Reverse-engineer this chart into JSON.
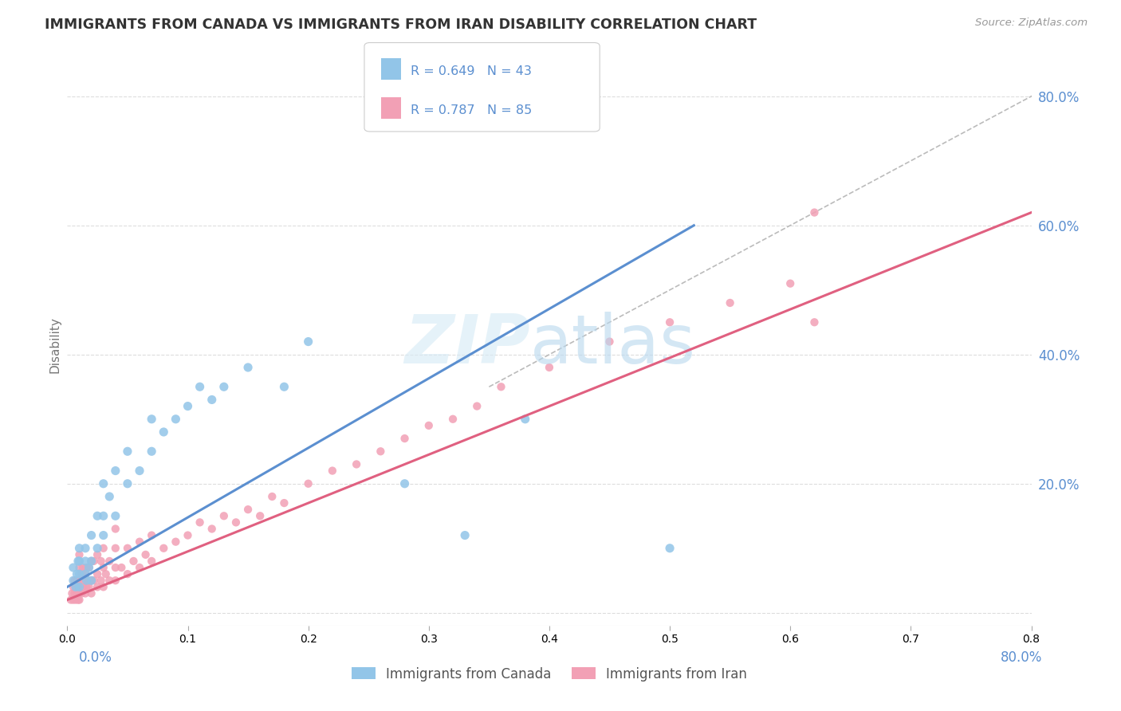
{
  "title": "IMMIGRANTS FROM CANADA VS IMMIGRANTS FROM IRAN DISABILITY CORRELATION CHART",
  "source": "Source: ZipAtlas.com",
  "ylabel": "Disability",
  "xlim": [
    0.0,
    0.8
  ],
  "ylim": [
    -0.02,
    0.85
  ],
  "canada_R": 0.649,
  "canada_N": 43,
  "iran_R": 0.787,
  "iran_N": 85,
  "canada_color": "#92C5E8",
  "iran_color": "#F2A0B5",
  "canada_line_color": "#5B8FD0",
  "iran_line_color": "#E06080",
  "ref_line_color": "#BBBBBB",
  "background_color": "#FFFFFF",
  "legend_border_color": "#CCCCCC",
  "ytick_color": "#5B8FD0",
  "xtick_color": "#5B8FD0",
  "grid_color": "#DDDDDD",
  "title_color": "#333333",
  "source_color": "#999999",
  "watermark_zip_color": "#D5EAF5",
  "watermark_atlas_color": "#B8D8EE",
  "canada_x": [
    0.005,
    0.005,
    0.007,
    0.008,
    0.009,
    0.01,
    0.01,
    0.01,
    0.01,
    0.015,
    0.015,
    0.015,
    0.016,
    0.018,
    0.02,
    0.02,
    0.02,
    0.025,
    0.025,
    0.03,
    0.03,
    0.03,
    0.035,
    0.04,
    0.04,
    0.05,
    0.05,
    0.06,
    0.07,
    0.07,
    0.08,
    0.09,
    0.1,
    0.11,
    0.12,
    0.13,
    0.15,
    0.18,
    0.2,
    0.28,
    0.33,
    0.38,
    0.5
  ],
  "canada_y": [
    0.05,
    0.07,
    0.04,
    0.06,
    0.08,
    0.04,
    0.06,
    0.08,
    0.1,
    0.06,
    0.08,
    0.1,
    0.05,
    0.07,
    0.05,
    0.08,
    0.12,
    0.1,
    0.15,
    0.12,
    0.15,
    0.2,
    0.18,
    0.15,
    0.22,
    0.2,
    0.25,
    0.22,
    0.25,
    0.3,
    0.28,
    0.3,
    0.32,
    0.35,
    0.33,
    0.35,
    0.38,
    0.35,
    0.42,
    0.2,
    0.12,
    0.3,
    0.1
  ],
  "iran_x": [
    0.003,
    0.004,
    0.005,
    0.005,
    0.006,
    0.006,
    0.007,
    0.007,
    0.008,
    0.008,
    0.009,
    0.009,
    0.01,
    0.01,
    0.01,
    0.01,
    0.01,
    0.012,
    0.012,
    0.013,
    0.013,
    0.014,
    0.015,
    0.015,
    0.016,
    0.016,
    0.017,
    0.018,
    0.018,
    0.02,
    0.02,
    0.02,
    0.022,
    0.022,
    0.025,
    0.025,
    0.025,
    0.028,
    0.028,
    0.03,
    0.03,
    0.03,
    0.032,
    0.035,
    0.035,
    0.04,
    0.04,
    0.04,
    0.04,
    0.045,
    0.05,
    0.05,
    0.055,
    0.06,
    0.06,
    0.065,
    0.07,
    0.07,
    0.08,
    0.09,
    0.1,
    0.11,
    0.12,
    0.13,
    0.14,
    0.15,
    0.16,
    0.17,
    0.18,
    0.2,
    0.22,
    0.24,
    0.26,
    0.28,
    0.3,
    0.32,
    0.34,
    0.36,
    0.4,
    0.45,
    0.5,
    0.55,
    0.6,
    0.62,
    0.62
  ],
  "iran_y": [
    0.02,
    0.03,
    0.02,
    0.04,
    0.03,
    0.05,
    0.02,
    0.04,
    0.03,
    0.05,
    0.02,
    0.04,
    0.02,
    0.03,
    0.05,
    0.07,
    0.09,
    0.03,
    0.06,
    0.04,
    0.07,
    0.05,
    0.03,
    0.06,
    0.04,
    0.07,
    0.05,
    0.04,
    0.07,
    0.03,
    0.05,
    0.08,
    0.05,
    0.08,
    0.04,
    0.06,
    0.09,
    0.05,
    0.08,
    0.04,
    0.07,
    0.1,
    0.06,
    0.05,
    0.08,
    0.05,
    0.07,
    0.1,
    0.13,
    0.07,
    0.06,
    0.1,
    0.08,
    0.07,
    0.11,
    0.09,
    0.08,
    0.12,
    0.1,
    0.11,
    0.12,
    0.14,
    0.13,
    0.15,
    0.14,
    0.16,
    0.15,
    0.18,
    0.17,
    0.2,
    0.22,
    0.23,
    0.25,
    0.27,
    0.29,
    0.3,
    0.32,
    0.35,
    0.38,
    0.42,
    0.45,
    0.48,
    0.51,
    0.45,
    0.62
  ],
  "canada_line_x": [
    0.0,
    0.52
  ],
  "canada_line_y": [
    0.04,
    0.6
  ],
  "iran_line_x": [
    0.0,
    0.8
  ],
  "iran_line_y": [
    0.02,
    0.62
  ],
  "ref_line_x": [
    0.35,
    0.85
  ],
  "ref_line_y": [
    0.35,
    0.85
  ]
}
